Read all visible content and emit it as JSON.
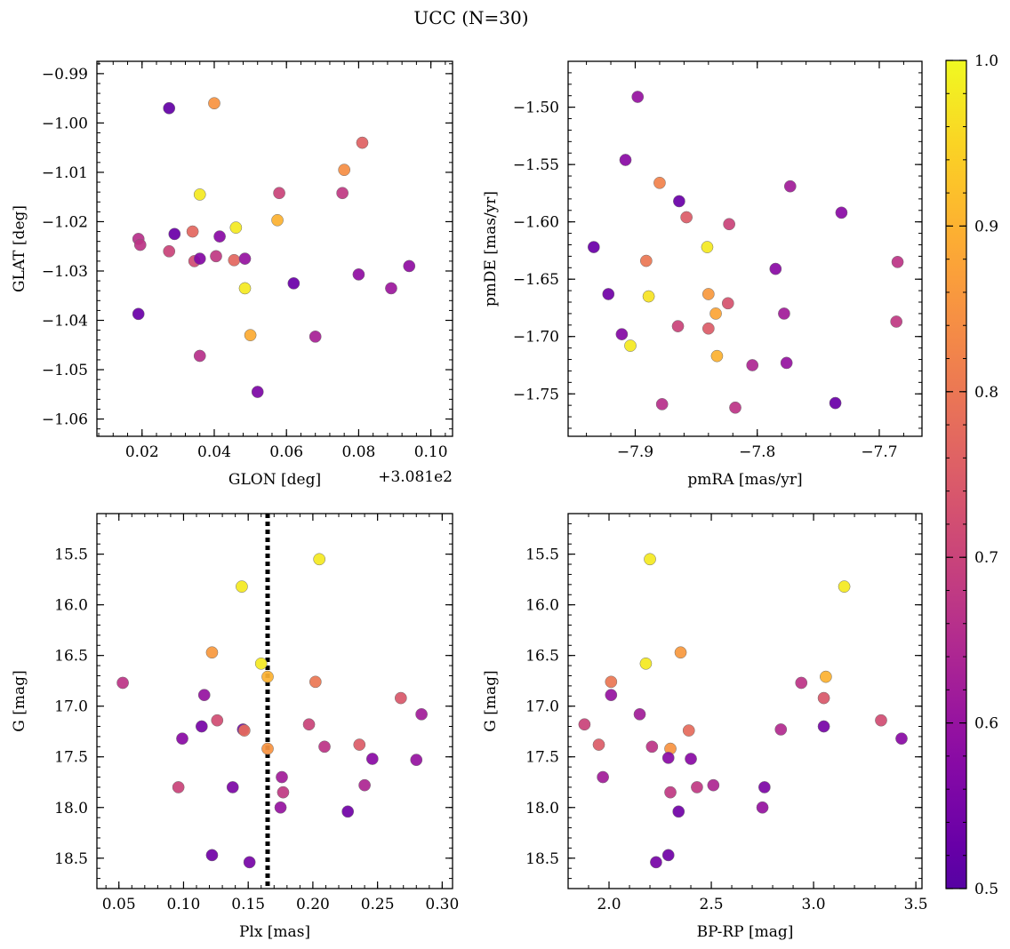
{
  "figure": {
    "title": "UCC (N=30)"
  },
  "colorbar": {
    "min": 0.5,
    "max": 1.0,
    "tick_labels": [
      "0.5",
      "0.6",
      "0.7",
      "0.8",
      "0.9",
      "1.0"
    ],
    "tick_values": [
      0.5,
      0.6,
      0.7,
      0.8,
      0.9,
      1.0
    ],
    "colormap": "plasma"
  },
  "chart_data": [
    {
      "type": "scatter",
      "xlabel": "GLON [deg]",
      "ylabel": "GLAT [deg]",
      "offset_text": "+3.081e2",
      "xlim": [
        0.0075,
        0.106
      ],
      "ylim": [
        -1.0635,
        -0.9875
      ],
      "xticks": [
        0.02,
        0.04,
        0.06,
        0.08,
        0.1
      ],
      "xtick_labels": [
        "0.02",
        "0.04",
        "0.06",
        "0.08",
        "0.10"
      ],
      "yticks": [
        -1.06,
        -1.05,
        -1.04,
        -1.03,
        -1.02,
        -1.01,
        -1.0,
        -0.99
      ],
      "ytick_labels": [
        "−1.06",
        "−1.05",
        "−1.04",
        "−1.03",
        "−1.02",
        "−1.01",
        "−1.00",
        "−0.99"
      ],
      "points": [
        {
          "x": 0.0275,
          "y": -0.997,
          "c": 0.52
        },
        {
          "x": 0.04,
          "y": -0.996,
          "c": 0.85
        },
        {
          "x": 0.081,
          "y": -1.004,
          "c": 0.76
        },
        {
          "x": 0.076,
          "y": -1.0095,
          "c": 0.84
        },
        {
          "x": 0.036,
          "y": -1.0145,
          "c": 0.98
        },
        {
          "x": 0.058,
          "y": -1.0142,
          "c": 0.7
        },
        {
          "x": 0.0755,
          "y": -1.0142,
          "c": 0.68
        },
        {
          "x": 0.0575,
          "y": -1.0197,
          "c": 0.9
        },
        {
          "x": 0.046,
          "y": -1.0212,
          "c": 0.98
        },
        {
          "x": 0.019,
          "y": -1.0235,
          "c": 0.66
        },
        {
          "x": 0.029,
          "y": -1.0225,
          "c": 0.53
        },
        {
          "x": 0.0415,
          "y": -1.023,
          "c": 0.58
        },
        {
          "x": 0.0195,
          "y": -1.0247,
          "c": 0.67
        },
        {
          "x": 0.0275,
          "y": -1.026,
          "c": 0.7
        },
        {
          "x": 0.034,
          "y": -1.022,
          "c": 0.77
        },
        {
          "x": 0.0345,
          "y": -1.028,
          "c": 0.72
        },
        {
          "x": 0.036,
          "y": -1.0275,
          "c": 0.57
        },
        {
          "x": 0.0405,
          "y": -1.027,
          "c": 0.68
        },
        {
          "x": 0.0455,
          "y": -1.0278,
          "c": 0.77
        },
        {
          "x": 0.0485,
          "y": -1.0275,
          "c": 0.6
        },
        {
          "x": 0.094,
          "y": -1.029,
          "c": 0.59
        },
        {
          "x": 0.08,
          "y": -1.0307,
          "c": 0.59
        },
        {
          "x": 0.062,
          "y": -1.0325,
          "c": 0.53
        },
        {
          "x": 0.089,
          "y": -1.0335,
          "c": 0.61
        },
        {
          "x": 0.0485,
          "y": -1.0335,
          "c": 0.98
        },
        {
          "x": 0.019,
          "y": -1.0387,
          "c": 0.53
        },
        {
          "x": 0.05,
          "y": -1.043,
          "c": 0.89
        },
        {
          "x": 0.068,
          "y": -1.0433,
          "c": 0.63
        },
        {
          "x": 0.036,
          "y": -1.0472,
          "c": 0.66
        },
        {
          "x": 0.052,
          "y": -1.0545,
          "c": 0.56
        }
      ]
    },
    {
      "type": "scatter",
      "xlabel": "pmRA [mas/yr]",
      "ylabel": "pmDE [mas/yr]",
      "xlim": [
        -7.955,
        -7.665
      ],
      "ylim": [
        -1.787,
        -1.46
      ],
      "xticks": [
        -7.9,
        -7.8,
        -7.7
      ],
      "xtick_labels": [
        "−7.9",
        "−7.8",
        "−7.7"
      ],
      "yticks": [
        -1.75,
        -1.7,
        -1.65,
        -1.6,
        -1.55,
        -1.5
      ],
      "ytick_labels": [
        "−1.75",
        "−1.70",
        "−1.65",
        "−1.60",
        "−1.55",
        "−1.50"
      ],
      "points": [
        {
          "x": -7.898,
          "y": -1.491,
          "c": 0.6
        },
        {
          "x": -7.908,
          "y": -1.546,
          "c": 0.58
        },
        {
          "x": -7.88,
          "y": -1.566,
          "c": 0.82
        },
        {
          "x": -7.773,
          "y": -1.569,
          "c": 0.62
        },
        {
          "x": -7.864,
          "y": -1.582,
          "c": 0.53
        },
        {
          "x": -7.731,
          "y": -1.592,
          "c": 0.58
        },
        {
          "x": -7.858,
          "y": -1.596,
          "c": 0.75
        },
        {
          "x": -7.823,
          "y": -1.602,
          "c": 0.7
        },
        {
          "x": -7.934,
          "y": -1.622,
          "c": 0.53
        },
        {
          "x": -7.841,
          "y": -1.622,
          "c": 0.98
        },
        {
          "x": -7.891,
          "y": -1.634,
          "c": 0.8
        },
        {
          "x": -7.685,
          "y": -1.635,
          "c": 0.67
        },
        {
          "x": -7.785,
          "y": -1.641,
          "c": 0.58
        },
        {
          "x": -7.922,
          "y": -1.663,
          "c": 0.54
        },
        {
          "x": -7.889,
          "y": -1.665,
          "c": 0.97
        },
        {
          "x": -7.84,
          "y": -1.663,
          "c": 0.86
        },
        {
          "x": -7.824,
          "y": -1.671,
          "c": 0.73
        },
        {
          "x": -7.834,
          "y": -1.68,
          "c": 0.88
        },
        {
          "x": -7.778,
          "y": -1.68,
          "c": 0.62
        },
        {
          "x": -7.686,
          "y": -1.687,
          "c": 0.68
        },
        {
          "x": -7.865,
          "y": -1.691,
          "c": 0.7
        },
        {
          "x": -7.84,
          "y": -1.693,
          "c": 0.75
        },
        {
          "x": -7.911,
          "y": -1.698,
          "c": 0.57
        },
        {
          "x": -7.904,
          "y": -1.708,
          "c": 0.98
        },
        {
          "x": -7.833,
          "y": -1.717,
          "c": 0.9
        },
        {
          "x": -7.804,
          "y": -1.725,
          "c": 0.64
        },
        {
          "x": -7.776,
          "y": -1.723,
          "c": 0.6
        },
        {
          "x": -7.878,
          "y": -1.759,
          "c": 0.66
        },
        {
          "x": -7.818,
          "y": -1.762,
          "c": 0.67
        },
        {
          "x": -7.736,
          "y": -1.758,
          "c": 0.53
        }
      ]
    },
    {
      "type": "scatter",
      "xlabel": "Plx [mas]",
      "ylabel": "G [mag]",
      "xlim": [
        0.033,
        0.308
      ],
      "ylim": [
        18.8,
        15.1
      ],
      "xticks": [
        0.05,
        0.1,
        0.15,
        0.2,
        0.25,
        0.3
      ],
      "xtick_labels": [
        "0.05",
        "0.10",
        "0.15",
        "0.20",
        "0.25",
        "0.30"
      ],
      "yticks": [
        15.5,
        16.0,
        16.5,
        17.0,
        17.5,
        18.0,
        18.5
      ],
      "ytick_labels": [
        "15.5",
        "16.0",
        "16.5",
        "17.0",
        "17.5",
        "18.0",
        "18.5"
      ],
      "vline": 0.165,
      "points": [
        {
          "x": 0.205,
          "y": 15.55,
          "c": 0.98
        },
        {
          "x": 0.145,
          "y": 15.82,
          "c": 0.98
        },
        {
          "x": 0.122,
          "y": 16.47,
          "c": 0.86
        },
        {
          "x": 0.16,
          "y": 16.58,
          "c": 0.98
        },
        {
          "x": 0.165,
          "y": 16.71,
          "c": 0.9
        },
        {
          "x": 0.053,
          "y": 16.77,
          "c": 0.67
        },
        {
          "x": 0.202,
          "y": 16.76,
          "c": 0.8
        },
        {
          "x": 0.116,
          "y": 16.89,
          "c": 0.6
        },
        {
          "x": 0.268,
          "y": 16.92,
          "c": 0.74
        },
        {
          "x": 0.284,
          "y": 17.08,
          "c": 0.62
        },
        {
          "x": 0.126,
          "y": 17.14,
          "c": 0.72
        },
        {
          "x": 0.114,
          "y": 17.2,
          "c": 0.55
        },
        {
          "x": 0.197,
          "y": 17.18,
          "c": 0.7
        },
        {
          "x": 0.146,
          "y": 17.23,
          "c": 0.55
        },
        {
          "x": 0.147,
          "y": 17.24,
          "c": 0.78
        },
        {
          "x": 0.099,
          "y": 17.32,
          "c": 0.58
        },
        {
          "x": 0.236,
          "y": 17.38,
          "c": 0.75
        },
        {
          "x": 0.209,
          "y": 17.4,
          "c": 0.67
        },
        {
          "x": 0.165,
          "y": 17.42,
          "c": 0.85
        },
        {
          "x": 0.246,
          "y": 17.52,
          "c": 0.58
        },
        {
          "x": 0.28,
          "y": 17.53,
          "c": 0.6
        },
        {
          "x": 0.176,
          "y": 17.7,
          "c": 0.62
        },
        {
          "x": 0.24,
          "y": 17.78,
          "c": 0.64
        },
        {
          "x": 0.096,
          "y": 17.8,
          "c": 0.7
        },
        {
          "x": 0.138,
          "y": 17.8,
          "c": 0.56
        },
        {
          "x": 0.177,
          "y": 17.85,
          "c": 0.68
        },
        {
          "x": 0.175,
          "y": 18.0,
          "c": 0.6
        },
        {
          "x": 0.227,
          "y": 18.04,
          "c": 0.54
        },
        {
          "x": 0.122,
          "y": 18.47,
          "c": 0.54
        },
        {
          "x": 0.151,
          "y": 18.54,
          "c": 0.55
        }
      ]
    },
    {
      "type": "scatter",
      "xlabel": "BP-RP [mag]",
      "ylabel": "G [mag]",
      "xlim": [
        1.8,
        3.53
      ],
      "ylim": [
        18.8,
        15.1
      ],
      "xticks": [
        2.0,
        2.5,
        3.0,
        3.5
      ],
      "xtick_labels": [
        "2.0",
        "2.5",
        "3.0",
        "3.5"
      ],
      "yticks": [
        15.5,
        16.0,
        16.5,
        17.0,
        17.5,
        18.0,
        18.5
      ],
      "ytick_labels": [
        "15.5",
        "16.0",
        "16.5",
        "17.0",
        "17.5",
        "18.0",
        "18.5"
      ],
      "points": [
        {
          "x": 2.2,
          "y": 15.55,
          "c": 0.98
        },
        {
          "x": 3.15,
          "y": 15.82,
          "c": 0.98
        },
        {
          "x": 2.35,
          "y": 16.47,
          "c": 0.86
        },
        {
          "x": 2.18,
          "y": 16.58,
          "c": 0.98
        },
        {
          "x": 3.06,
          "y": 16.71,
          "c": 0.9
        },
        {
          "x": 2.01,
          "y": 16.76,
          "c": 0.8
        },
        {
          "x": 2.94,
          "y": 16.77,
          "c": 0.67
        },
        {
          "x": 2.01,
          "y": 16.89,
          "c": 0.6
        },
        {
          "x": 3.05,
          "y": 16.92,
          "c": 0.74
        },
        {
          "x": 2.15,
          "y": 17.08,
          "c": 0.62
        },
        {
          "x": 3.33,
          "y": 17.14,
          "c": 0.72
        },
        {
          "x": 1.88,
          "y": 17.18,
          "c": 0.7
        },
        {
          "x": 3.05,
          "y": 17.2,
          "c": 0.55
        },
        {
          "x": 2.84,
          "y": 17.23,
          "c": 0.65
        },
        {
          "x": 2.39,
          "y": 17.24,
          "c": 0.78
        },
        {
          "x": 3.43,
          "y": 17.32,
          "c": 0.58
        },
        {
          "x": 1.95,
          "y": 17.38,
          "c": 0.75
        },
        {
          "x": 2.21,
          "y": 17.4,
          "c": 0.67
        },
        {
          "x": 2.3,
          "y": 17.42,
          "c": 0.85
        },
        {
          "x": 2.29,
          "y": 17.51,
          "c": 0.58
        },
        {
          "x": 2.4,
          "y": 17.52,
          "c": 0.58
        },
        {
          "x": 1.97,
          "y": 17.7,
          "c": 0.62
        },
        {
          "x": 2.51,
          "y": 17.78,
          "c": 0.64
        },
        {
          "x": 2.43,
          "y": 17.8,
          "c": 0.68
        },
        {
          "x": 2.76,
          "y": 17.8,
          "c": 0.56
        },
        {
          "x": 2.3,
          "y": 17.85,
          "c": 0.68
        },
        {
          "x": 2.75,
          "y": 18.0,
          "c": 0.6
        },
        {
          "x": 2.34,
          "y": 18.04,
          "c": 0.54
        },
        {
          "x": 2.29,
          "y": 18.47,
          "c": 0.54
        },
        {
          "x": 2.23,
          "y": 18.54,
          "c": 0.55
        }
      ]
    }
  ]
}
